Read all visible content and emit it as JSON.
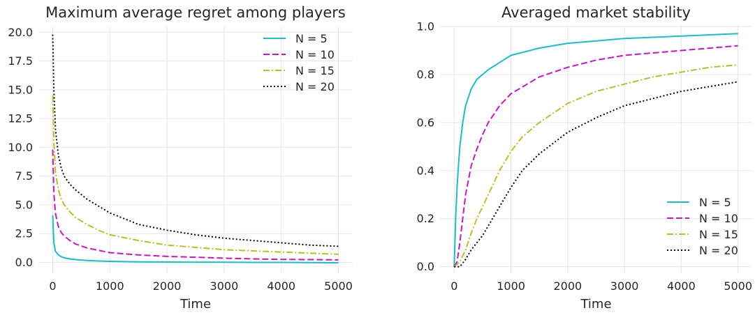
{
  "chart_data": [
    {
      "type": "line",
      "title": "Maximum average regret among players",
      "xlabel": "Time",
      "ylabel": "",
      "xlim": [
        -250,
        5250
      ],
      "ylim": [
        -1.0,
        20.5
      ],
      "xticks": [
        0,
        1000,
        2000,
        3000,
        4000,
        5000
      ],
      "yticks": [
        0.0,
        2.5,
        5.0,
        7.5,
        10.0,
        12.5,
        15.0,
        17.5,
        20.0
      ],
      "ytick_labels": [
        "0.0",
        "2.5",
        "5.0",
        "7.5",
        "10.0",
        "12.5",
        "15.0",
        "17.5",
        "20.0"
      ],
      "grid": true,
      "legend_position": "top-right",
      "series": [
        {
          "name": "N = 5",
          "color": "#17becf",
          "dash": "solid",
          "x": [
            0,
            20,
            50,
            100,
            150,
            200,
            300,
            400,
            600,
            800,
            1000,
            1500,
            2000,
            2500,
            3000,
            3500,
            4000,
            4500,
            5000
          ],
          "y": [
            4.1,
            1.7,
            0.95,
            0.65,
            0.5,
            0.4,
            0.3,
            0.24,
            0.17,
            0.12,
            0.09,
            0.05,
            0.03,
            0.02,
            0.01,
            0.0,
            0.0,
            -0.02,
            -0.03
          ]
        },
        {
          "name": "N = 10",
          "color": "#c716c7",
          "dash": "dashed",
          "x": [
            0,
            20,
            50,
            100,
            150,
            200,
            300,
            400,
            600,
            800,
            1000,
            1500,
            2000,
            2500,
            3000,
            3500,
            4000,
            4500,
            5000
          ],
          "y": [
            9.8,
            6.0,
            4.2,
            3.1,
            2.6,
            2.3,
            1.9,
            1.6,
            1.25,
            1.05,
            0.85,
            0.65,
            0.52,
            0.45,
            0.37,
            0.3,
            0.26,
            0.24,
            0.22
          ]
        },
        {
          "name": "N = 15",
          "color": "#bcbd22",
          "dash": "dashdot",
          "x": [
            0,
            20,
            50,
            100,
            150,
            200,
            300,
            400,
            600,
            800,
            1000,
            1500,
            2000,
            2500,
            3000,
            3500,
            4000,
            4500,
            5000
          ],
          "y": [
            14.5,
            10.5,
            7.8,
            6.3,
            5.5,
            5.0,
            4.4,
            3.9,
            3.3,
            2.8,
            2.4,
            1.9,
            1.5,
            1.3,
            1.1,
            1.0,
            0.9,
            0.8,
            0.7
          ]
        },
        {
          "name": "N = 20",
          "color": "#000000",
          "dash": "dotted",
          "x": [
            0,
            20,
            50,
            100,
            150,
            200,
            300,
            400,
            600,
            800,
            1000,
            1500,
            2000,
            2500,
            3000,
            3500,
            4000,
            4500,
            5000
          ],
          "y": [
            19.8,
            15.0,
            11.5,
            9.3,
            8.2,
            7.5,
            6.8,
            6.3,
            5.5,
            4.9,
            4.3,
            3.3,
            2.8,
            2.4,
            2.1,
            1.9,
            1.7,
            1.5,
            1.4
          ]
        }
      ]
    },
    {
      "type": "line",
      "title": "Averaged market stability",
      "xlabel": "Time",
      "ylabel": "",
      "xlim": [
        -250,
        5250
      ],
      "ylim": [
        -0.03,
        1.0
      ],
      "xticks": [
        0,
        1000,
        2000,
        3000,
        4000,
        5000
      ],
      "yticks": [
        0.0,
        0.2,
        0.4,
        0.6,
        0.8,
        1.0
      ],
      "ytick_labels": [
        "0.0",
        "0.2",
        "0.4",
        "0.6",
        "0.8",
        "1.0"
      ],
      "grid": true,
      "legend_position": "bottom-right",
      "series": [
        {
          "name": "N = 5",
          "color": "#17becf",
          "dash": "solid",
          "x": [
            0,
            25,
            50,
            75,
            100,
            150,
            200,
            300,
            400,
            500,
            600,
            800,
            1000,
            1500,
            2000,
            2500,
            3000,
            4000,
            5000
          ],
          "y": [
            0.0,
            0.2,
            0.33,
            0.42,
            0.5,
            0.6,
            0.67,
            0.74,
            0.78,
            0.8,
            0.82,
            0.85,
            0.88,
            0.91,
            0.93,
            0.94,
            0.95,
            0.96,
            0.97
          ]
        },
        {
          "name": "N = 10",
          "color": "#c716c7",
          "dash": "dashed",
          "x": [
            0,
            50,
            100,
            150,
            200,
            300,
            400,
            500,
            600,
            800,
            1000,
            1500,
            2000,
            2500,
            3000,
            4000,
            5000
          ],
          "y": [
            0.0,
            0.02,
            0.1,
            0.2,
            0.3,
            0.42,
            0.49,
            0.55,
            0.6,
            0.67,
            0.72,
            0.79,
            0.83,
            0.86,
            0.88,
            0.9,
            0.92
          ]
        },
        {
          "name": "N = 15",
          "color": "#bcbd22",
          "dash": "dashdot",
          "x": [
            0,
            100,
            200,
            300,
            400,
            500,
            600,
            800,
            1000,
            1200,
            1500,
            2000,
            2500,
            3000,
            3500,
            4000,
            4500,
            5000
          ],
          "y": [
            0.0,
            0.02,
            0.07,
            0.14,
            0.2,
            0.25,
            0.3,
            0.4,
            0.48,
            0.54,
            0.6,
            0.68,
            0.73,
            0.76,
            0.79,
            0.81,
            0.83,
            0.84
          ]
        },
        {
          "name": "N = 20",
          "color": "#000000",
          "dash": "dotted",
          "x": [
            0,
            100,
            200,
            300,
            400,
            500,
            600,
            800,
            1000,
            1200,
            1500,
            2000,
            2500,
            3000,
            3500,
            4000,
            4500,
            5000
          ],
          "y": [
            0.0,
            0.0,
            0.03,
            0.07,
            0.1,
            0.13,
            0.17,
            0.25,
            0.33,
            0.4,
            0.47,
            0.56,
            0.62,
            0.67,
            0.7,
            0.73,
            0.75,
            0.77
          ]
        }
      ]
    }
  ]
}
